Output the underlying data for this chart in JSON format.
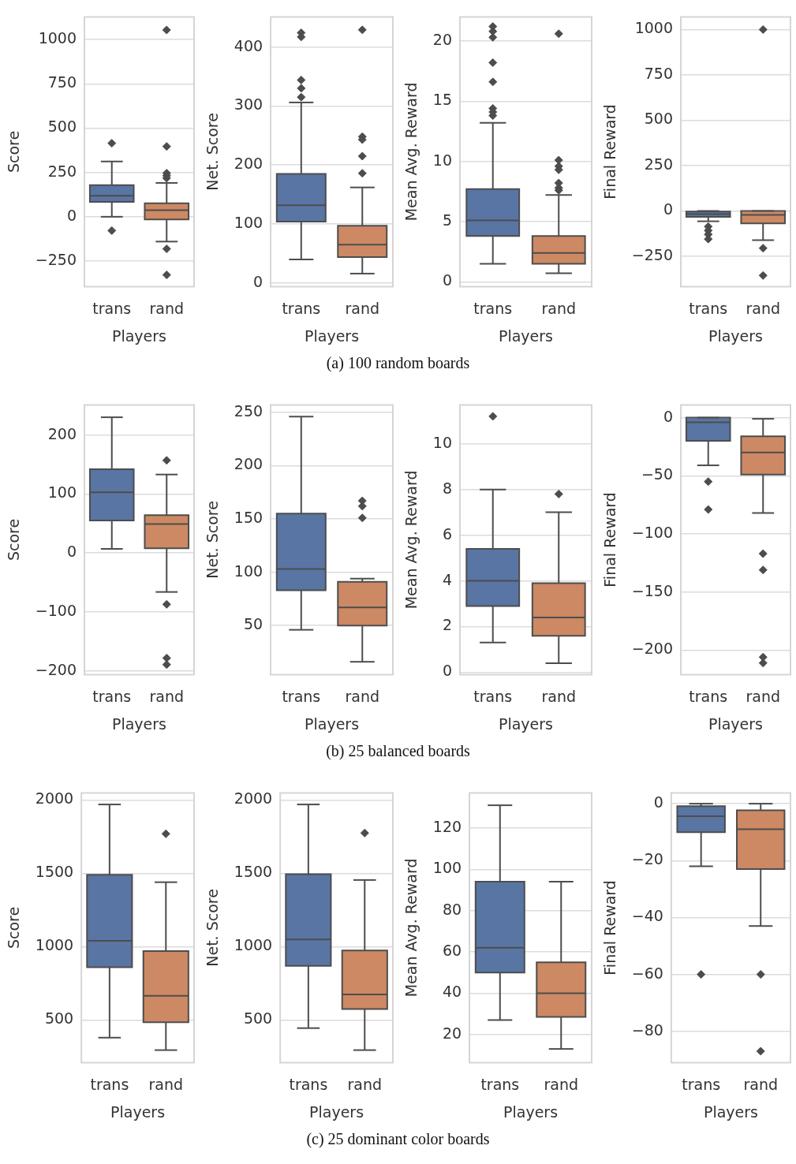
{
  "chart_data": [
    {
      "type": "box",
      "categories": [
        "trans",
        "rand"
      ],
      "xlabel": "Players",
      "ylabel": "Score",
      "ylim": [
        -394,
        1128
      ],
      "yticks": [
        -250,
        0,
        250,
        500,
        750,
        1000
      ],
      "grid": "y",
      "marker": "diamond",
      "colors": [
        "#5975a4",
        "#cc8963"
      ],
      "annotations": [
        "(a) 100 random boards"
      ],
      "boxes": [
        {
          "low": 0,
          "q1": 84,
          "median": 118,
          "q3": 179,
          "high": 312,
          "outliers": [
            415,
            -78
          ]
        },
        {
          "low": -140,
          "q1": -15,
          "median": 37,
          "q3": 76,
          "high": 191,
          "outliers": [
            1054,
            397,
            246,
            232,
            218,
            -181,
            -328
          ]
        }
      ]
    },
    {
      "type": "box",
      "categories": [
        "trans",
        "rand"
      ],
      "xlabel": "Players",
      "ylabel": "Net. Score",
      "ylim": [
        -6,
        451
      ],
      "yticks": [
        0,
        100,
        200,
        300,
        400
      ],
      "grid": "y",
      "marker": "diamond",
      "colors": [
        "#5975a4",
        "#cc8963"
      ],
      "boxes": [
        {
          "low": 40,
          "q1": 104,
          "median": 132,
          "q3": 185,
          "high": 306,
          "outliers": [
            424,
            417,
            344,
            330,
            315
          ]
        },
        {
          "low": 16,
          "q1": 44,
          "median": 65,
          "q3": 97,
          "high": 162,
          "outliers": [
            429,
            248,
            243,
            215,
            186
          ]
        }
      ]
    },
    {
      "type": "box",
      "categories": [
        "trans",
        "rand"
      ],
      "xlabel": "Players",
      "ylabel": "Mean Avg. Reward",
      "ylim": [
        -0.4,
        22
      ],
      "yticks": [
        0,
        5,
        10,
        15,
        20
      ],
      "grid": "y",
      "marker": "diamond",
      "colors": [
        "#5975a4",
        "#cc8963"
      ],
      "boxes": [
        {
          "low": 1.5,
          "q1": 3.8,
          "median": 5.1,
          "q3": 7.7,
          "high": 13.2,
          "outliers": [
            21.2,
            20.8,
            20.3,
            18.2,
            16.6,
            14.4,
            14.1,
            13.8
          ]
        },
        {
          "low": 0.7,
          "q1": 1.5,
          "median": 2.4,
          "q3": 3.8,
          "high": 7.2,
          "outliers": [
            20.6,
            10.1,
            9.6,
            9.3,
            8.2,
            7.8,
            7.6
          ]
        }
      ]
    },
    {
      "type": "box",
      "categories": [
        "trans",
        "rand"
      ],
      "xlabel": "Players",
      "ylabel": "Final Reward",
      "ylim": [
        -417,
        1070
      ],
      "yticks": [
        -250,
        0,
        250,
        500,
        750,
        1000
      ],
      "grid": "y",
      "marker": "diamond",
      "colors": [
        "#5975a4",
        "#cc8963"
      ],
      "boxes": [
        {
          "low": -57,
          "q1": -33,
          "median": -17,
          "q3": -3,
          "high": 0,
          "outliers": [
            -86,
            -108,
            -129,
            -155
          ]
        },
        {
          "low": -161,
          "q1": -69,
          "median": -22,
          "q3": 0,
          "high": 0,
          "outliers": [
            1000,
            -205,
            -356
          ]
        }
      ]
    },
    {
      "type": "box",
      "categories": [
        "trans",
        "rand"
      ],
      "xlabel": "Players",
      "ylabel": "Score",
      "ylim": [
        -206,
        251
      ],
      "yticks": [
        -200,
        -100,
        0,
        100,
        200
      ],
      "grid": "y",
      "marker": "diamond",
      "colors": [
        "#5975a4",
        "#cc8963"
      ],
      "annotations": [
        "(b) 25 balanced boards"
      ],
      "boxes": [
        {
          "low": 7,
          "q1": 55,
          "median": 103,
          "q3": 142,
          "high": 230
        },
        {
          "low": -66,
          "q1": 8,
          "median": 49,
          "q3": 64,
          "high": 133,
          "outliers": [
            157,
            -87,
            -178,
            -189
          ]
        }
      ]
    },
    {
      "type": "box",
      "categories": [
        "trans",
        "rand"
      ],
      "xlabel": "Players",
      "ylabel": "Net. Score",
      "ylim": [
        4,
        257
      ],
      "yticks": [
        50,
        100,
        150,
        200,
        250
      ],
      "grid": "y",
      "marker": "diamond",
      "colors": [
        "#5975a4",
        "#cc8963"
      ],
      "boxes": [
        {
          "low": 46,
          "q1": 83,
          "median": 103,
          "q3": 155,
          "high": 246
        },
        {
          "low": 16,
          "q1": 50,
          "median": 67,
          "q3": 91,
          "high": 94,
          "outliers": [
            167,
            162,
            151
          ]
        }
      ]
    },
    {
      "type": "box",
      "categories": [
        "trans",
        "rand"
      ],
      "xlabel": "Players",
      "ylabel": "Mean Avg. Reward",
      "ylim": [
        -0.1,
        11.7
      ],
      "yticks": [
        0,
        2,
        4,
        6,
        8,
        10
      ],
      "grid": "y",
      "marker": "diamond",
      "colors": [
        "#5975a4",
        "#cc8963"
      ],
      "boxes": [
        {
          "low": 1.3,
          "q1": 2.9,
          "median": 4.0,
          "q3": 5.4,
          "high": 8.0,
          "outliers": [
            11.2
          ]
        },
        {
          "low": 0.4,
          "q1": 1.6,
          "median": 2.4,
          "q3": 3.9,
          "high": 7.0,
          "outliers": [
            7.8
          ]
        }
      ]
    },
    {
      "type": "box",
      "categories": [
        "trans",
        "rand"
      ],
      "xlabel": "Players",
      "ylabel": "Final Reward",
      "ylim": [
        -221,
        11
      ],
      "yticks": [
        -200,
        -150,
        -100,
        -50,
        0
      ],
      "grid": "y",
      "marker": "diamond",
      "colors": [
        "#5975a4",
        "#cc8963"
      ],
      "boxes": [
        {
          "low": -41,
          "q1": -20,
          "median": -4,
          "q3": 0,
          "high": 0,
          "outliers": [
            -55,
            -79
          ]
        },
        {
          "low": -82,
          "q1": -49,
          "median": -30,
          "q3": -16,
          "high": -1,
          "outliers": [
            -117,
            -131,
            -206,
            -211
          ]
        }
      ]
    },
    {
      "type": "box",
      "categories": [
        "trans",
        "rand"
      ],
      "xlabel": "Players",
      "ylabel": "Score",
      "ylim": [
        210,
        2049
      ],
      "yticks": [
        500,
        1000,
        1500,
        2000
      ],
      "grid": "y",
      "marker": "diamond",
      "colors": [
        "#5975a4",
        "#cc8963"
      ],
      "annotations": [
        "(c) 25 dominant color boards"
      ],
      "boxes": [
        {
          "low": 380,
          "q1": 860,
          "median": 1040,
          "q3": 1490,
          "high": 1970
        },
        {
          "low": 295,
          "q1": 485,
          "median": 665,
          "q3": 970,
          "high": 1440,
          "outliers": [
            1770
          ]
        }
      ]
    },
    {
      "type": "box",
      "categories": [
        "trans",
        "rand"
      ],
      "xlabel": "Players",
      "ylabel": "Net. Score",
      "ylim": [
        210,
        2049
      ],
      "yticks": [
        500,
        1000,
        1500,
        2000
      ],
      "grid": "y",
      "marker": "diamond",
      "colors": [
        "#5975a4",
        "#cc8963"
      ],
      "boxes": [
        {
          "low": 445,
          "q1": 870,
          "median": 1050,
          "q3": 1495,
          "high": 1970
        },
        {
          "low": 295,
          "q1": 575,
          "median": 675,
          "q3": 975,
          "high": 1455,
          "outliers": [
            1775
          ]
        }
      ]
    },
    {
      "type": "box",
      "categories": [
        "trans",
        "rand"
      ],
      "xlabel": "Players",
      "ylabel": "Mean Avg. Reward",
      "ylim": [
        6.4,
        137
      ],
      "yticks": [
        20,
        40,
        60,
        80,
        100,
        120
      ],
      "grid": "y",
      "colors": [
        "#5975a4",
        "#cc8963"
      ],
      "boxes": [
        {
          "low": 27,
          "q1": 50,
          "median": 62,
          "q3": 94,
          "high": 131
        },
        {
          "low": 13,
          "q1": 28.5,
          "median": 40,
          "q3": 55,
          "high": 94
        }
      ]
    },
    {
      "type": "box",
      "categories": [
        "trans",
        "rand"
      ],
      "xlabel": "Players",
      "ylabel": "Final Reward",
      "ylim": [
        -91,
        3.8
      ],
      "yticks": [
        -80,
        -60,
        -40,
        -20,
        0
      ],
      "grid": "y",
      "marker": "diamond",
      "colors": [
        "#5975a4",
        "#cc8963"
      ],
      "boxes": [
        {
          "low": -22,
          "q1": -10,
          "median": -4.4,
          "q3": -0.9,
          "high": 0,
          "outliers": [
            -60
          ]
        },
        {
          "low": -43,
          "q1": -23,
          "median": -9,
          "q3": -2.3,
          "high": 0,
          "outliers": [
            -60,
            -87
          ]
        }
      ]
    }
  ]
}
